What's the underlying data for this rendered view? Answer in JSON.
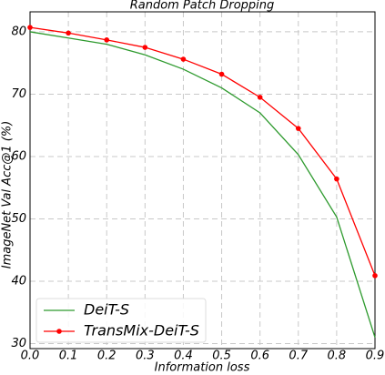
{
  "chart_data": {
    "type": "line",
    "title": "Random Patch Dropping",
    "x_label": "Information loss",
    "y_label": "ImageNet Val Acc@1 (%)",
    "x": [
      0,
      0.1,
      0.2,
      0.3,
      0.4,
      0.5,
      0.6,
      0.7,
      0.8,
      0.9
    ],
    "series": [
      {
        "name": "DeiT-S",
        "color": "#2e9a2e",
        "marker": false,
        "values": [
          80.0,
          79.0,
          78.0,
          76.3,
          74.0,
          71.0,
          67.0,
          60.3,
          50.3,
          31.0
        ]
      },
      {
        "name": "TransMix-DeiT-S",
        "color": "#ff0000",
        "marker": true,
        "values": [
          80.7,
          79.8,
          78.7,
          77.5,
          75.6,
          73.2,
          69.5,
          64.5,
          56.4,
          40.9
        ]
      }
    ],
    "xlim": [
      0,
      0.9
    ],
    "ylim": [
      29.2,
      83.2
    ],
    "xticks": [
      {
        "value": 0,
        "label": "0.0"
      },
      0.1,
      0.2,
      0.3,
      0.4,
      0.5,
      0.6,
      0.7,
      0.8,
      0.9
    ],
    "yticks": [
      30,
      40,
      50,
      60,
      70,
      80
    ],
    "grid": true,
    "legend": "lower left"
  }
}
